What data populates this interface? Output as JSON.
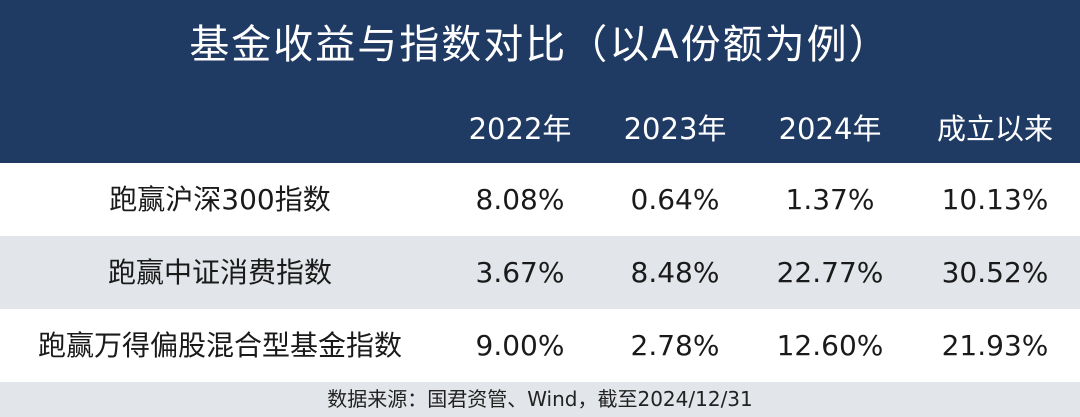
{
  "title": "基金收益与指数对比（以A份额为例）",
  "columns": [
    "",
    "2022年",
    "2023年",
    "2024年",
    "成立以来"
  ],
  "rows": [
    [
      "跑赢沪深300指数",
      "8.08%",
      "0.64%",
      "1.37%",
      "10.13%"
    ],
    [
      "跑赢中证消费指数",
      "3.67%",
      "8.48%",
      "22.77%",
      "30.52%"
    ],
    [
      "跑赢万得偏股混合型基金指数",
      "9.00%",
      "2.78%",
      "12.60%",
      "21.93%"
    ]
  ],
  "footer": "数据来源：国君资管、Wind，截至2024/12/31",
  "colors": {
    "header_bg": "#1f3a63",
    "header_text": "#ffffff",
    "alt_row_bg": "#e2e5e9",
    "text": "#1a1a1a"
  },
  "chart_data": {
    "type": "table",
    "title": "基金收益与指数对比（以A份额为例）",
    "columns": [
      "2022年",
      "2023年",
      "2024年",
      "成立以来"
    ],
    "rows": [
      {
        "label": "跑赢沪深300指数",
        "values": [
          "8.08%",
          "0.64%",
          "1.37%",
          "10.13%"
        ]
      },
      {
        "label": "跑赢中证消费指数",
        "values": [
          "3.67%",
          "8.48%",
          "22.77%",
          "30.52%"
        ]
      },
      {
        "label": "跑赢万得偏股混合型基金指数",
        "values": [
          "9.00%",
          "2.78%",
          "12.60%",
          "21.93%"
        ]
      }
    ]
  }
}
